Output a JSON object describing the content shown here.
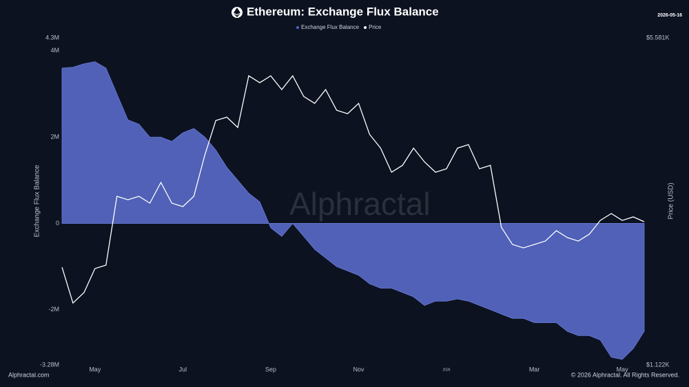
{
  "chart_data": {
    "type": "area-line",
    "title": "Ethereum: Exchange Flux Balance",
    "date": "2026-05-16",
    "watermark": "Alphractal",
    "source": "Alphractal.com",
    "copyright": "© 2026 Alphractal. All Rights Reserved.",
    "y_label": "Exchange Flux Balance",
    "y2_label": "Price (USD)",
    "categories": [
      null,
      null,
      null,
      "May",
      null,
      null,
      null,
      null,
      null,
      null,
      null,
      "Jul",
      null,
      null,
      null,
      null,
      null,
      null,
      null,
      "Sep",
      null,
      null,
      null,
      null,
      null,
      null,
      null,
      "Nov",
      null,
      null,
      null,
      null,
      null,
      null,
      null,
      "2026",
      null,
      null,
      null,
      null,
      null,
      null,
      null,
      "Mar",
      null,
      null,
      null,
      null,
      null,
      null,
      null,
      "May",
      null,
      null
    ],
    "series": [
      {
        "name": "Exchange Flux Balance",
        "color": "#5466c0",
        "values": [
          3600000,
          3620000,
          3700000,
          3750000,
          3600000,
          3000000,
          2400000,
          2300000,
          2000000,
          2000000,
          1900000,
          2100000,
          2200000,
          2000000,
          1700000,
          1300000,
          1000000,
          700000,
          500000,
          -100000,
          -300000,
          0,
          -300000,
          -600000,
          -800000,
          -1000000,
          -1100000,
          -1200000,
          -1400000,
          -1500000,
          -1500000,
          -1600000,
          -1700000,
          -1900000,
          -1800000,
          -1800000,
          -1750000,
          -1800000,
          -1900000,
          -2000000,
          -2100000,
          -2200000,
          -2200000,
          -2300000,
          -2300000,
          -2300000,
          -2500000,
          -2600000,
          -2600000,
          -2700000,
          -3100000,
          -3150000,
          -2900000,
          -2500000
        ]
      },
      {
        "name": "Price",
        "color": "#ffffff",
        "axis": "y2",
        "values": [
          1812,
          1520,
          1600,
          1800,
          1831,
          2566,
          2523,
          2566,
          2481,
          2746,
          2481,
          2440,
          2566,
          3143,
          3721,
          3784,
          3597,
          4634,
          4480,
          4634,
          4331,
          4634,
          4187,
          4048,
          4331,
          3914,
          3848,
          4048,
          3477,
          3250,
          2888,
          2987,
          3250,
          3038,
          2888,
          2937,
          3250,
          3306,
          2937,
          2987,
          2204,
          2026,
          1992,
          2026,
          2060,
          2168,
          2096,
          2060,
          2131,
          2280,
          2358,
          2280,
          2319,
          2265
        ]
      }
    ],
    "ylim": [
      -3280000,
      4300000
    ],
    "yticks": [
      {
        "value": -3280000,
        "label": "-3.28M"
      },
      {
        "value": -2000000,
        "label": "-2M"
      },
      0,
      {
        "value": 2000000,
        "label": "2M"
      },
      {
        "value": 4000000,
        "label": "4M"
      },
      {
        "value": 4300000,
        "label": "4.3M"
      }
    ],
    "y2lim": [
      1122,
      5581
    ],
    "y2ticks": [
      {
        "value": 1122,
        "label": "$1.122K"
      },
      {
        "value": 5581,
        "label": "$5.581K"
      }
    ],
    "y2_log_scale": true,
    "grid": false
  }
}
